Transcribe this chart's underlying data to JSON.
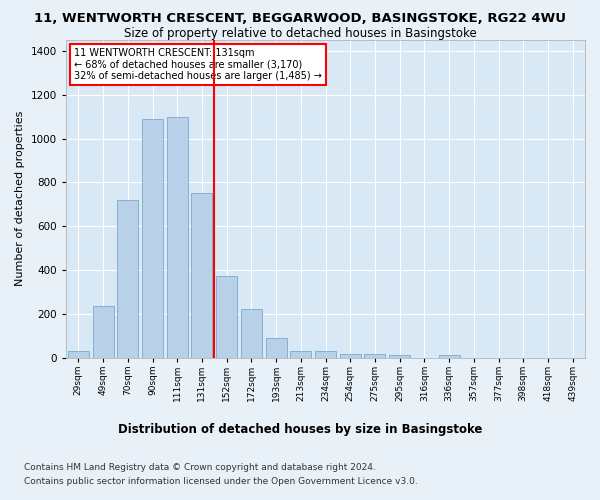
{
  "title1": "11, WENTWORTH CRESCENT, BEGGARWOOD, BASINGSTOKE, RG22 4WU",
  "title2": "Size of property relative to detached houses in Basingstoke",
  "xlabel": "Distribution of detached houses by size in Basingstoke",
  "ylabel": "Number of detached properties",
  "categories": [
    "29sqm",
    "49sqm",
    "70sqm",
    "90sqm",
    "111sqm",
    "131sqm",
    "152sqm",
    "172sqm",
    "193sqm",
    "213sqm",
    "234sqm",
    "254sqm",
    "275sqm",
    "295sqm",
    "316sqm",
    "336sqm",
    "357sqm",
    "377sqm",
    "398sqm",
    "418sqm",
    "439sqm"
  ],
  "values": [
    30,
    235,
    720,
    1090,
    1100,
    750,
    370,
    220,
    90,
    30,
    30,
    15,
    15,
    10,
    0,
    10,
    0,
    0,
    0,
    0,
    0
  ],
  "bar_color": "#b8d0e8",
  "bar_edge_color": "#7aabcc",
  "redline_index": 5,
  "annotation_line1": "11 WENTWORTH CRESCENT: 131sqm",
  "annotation_line2": "← 68% of detached houses are smaller (3,170)",
  "annotation_line3": "32% of semi-detached houses are larger (1,485) →",
  "ylim": [
    0,
    1450
  ],
  "yticks": [
    0,
    200,
    400,
    600,
    800,
    1000,
    1200,
    1400
  ],
  "footnote1": "Contains HM Land Registry data © Crown copyright and database right 2024.",
  "footnote2": "Contains public sector information licensed under the Open Government Licence v3.0.",
  "bg_color": "#e8f0f8",
  "plot_bg_color": "#d8e8f4",
  "title1_fontsize": 9.5,
  "title2_fontsize": 8.5,
  "xlabel_fontsize": 8.5,
  "ylabel_fontsize": 8,
  "footnote_fontsize": 6.5
}
